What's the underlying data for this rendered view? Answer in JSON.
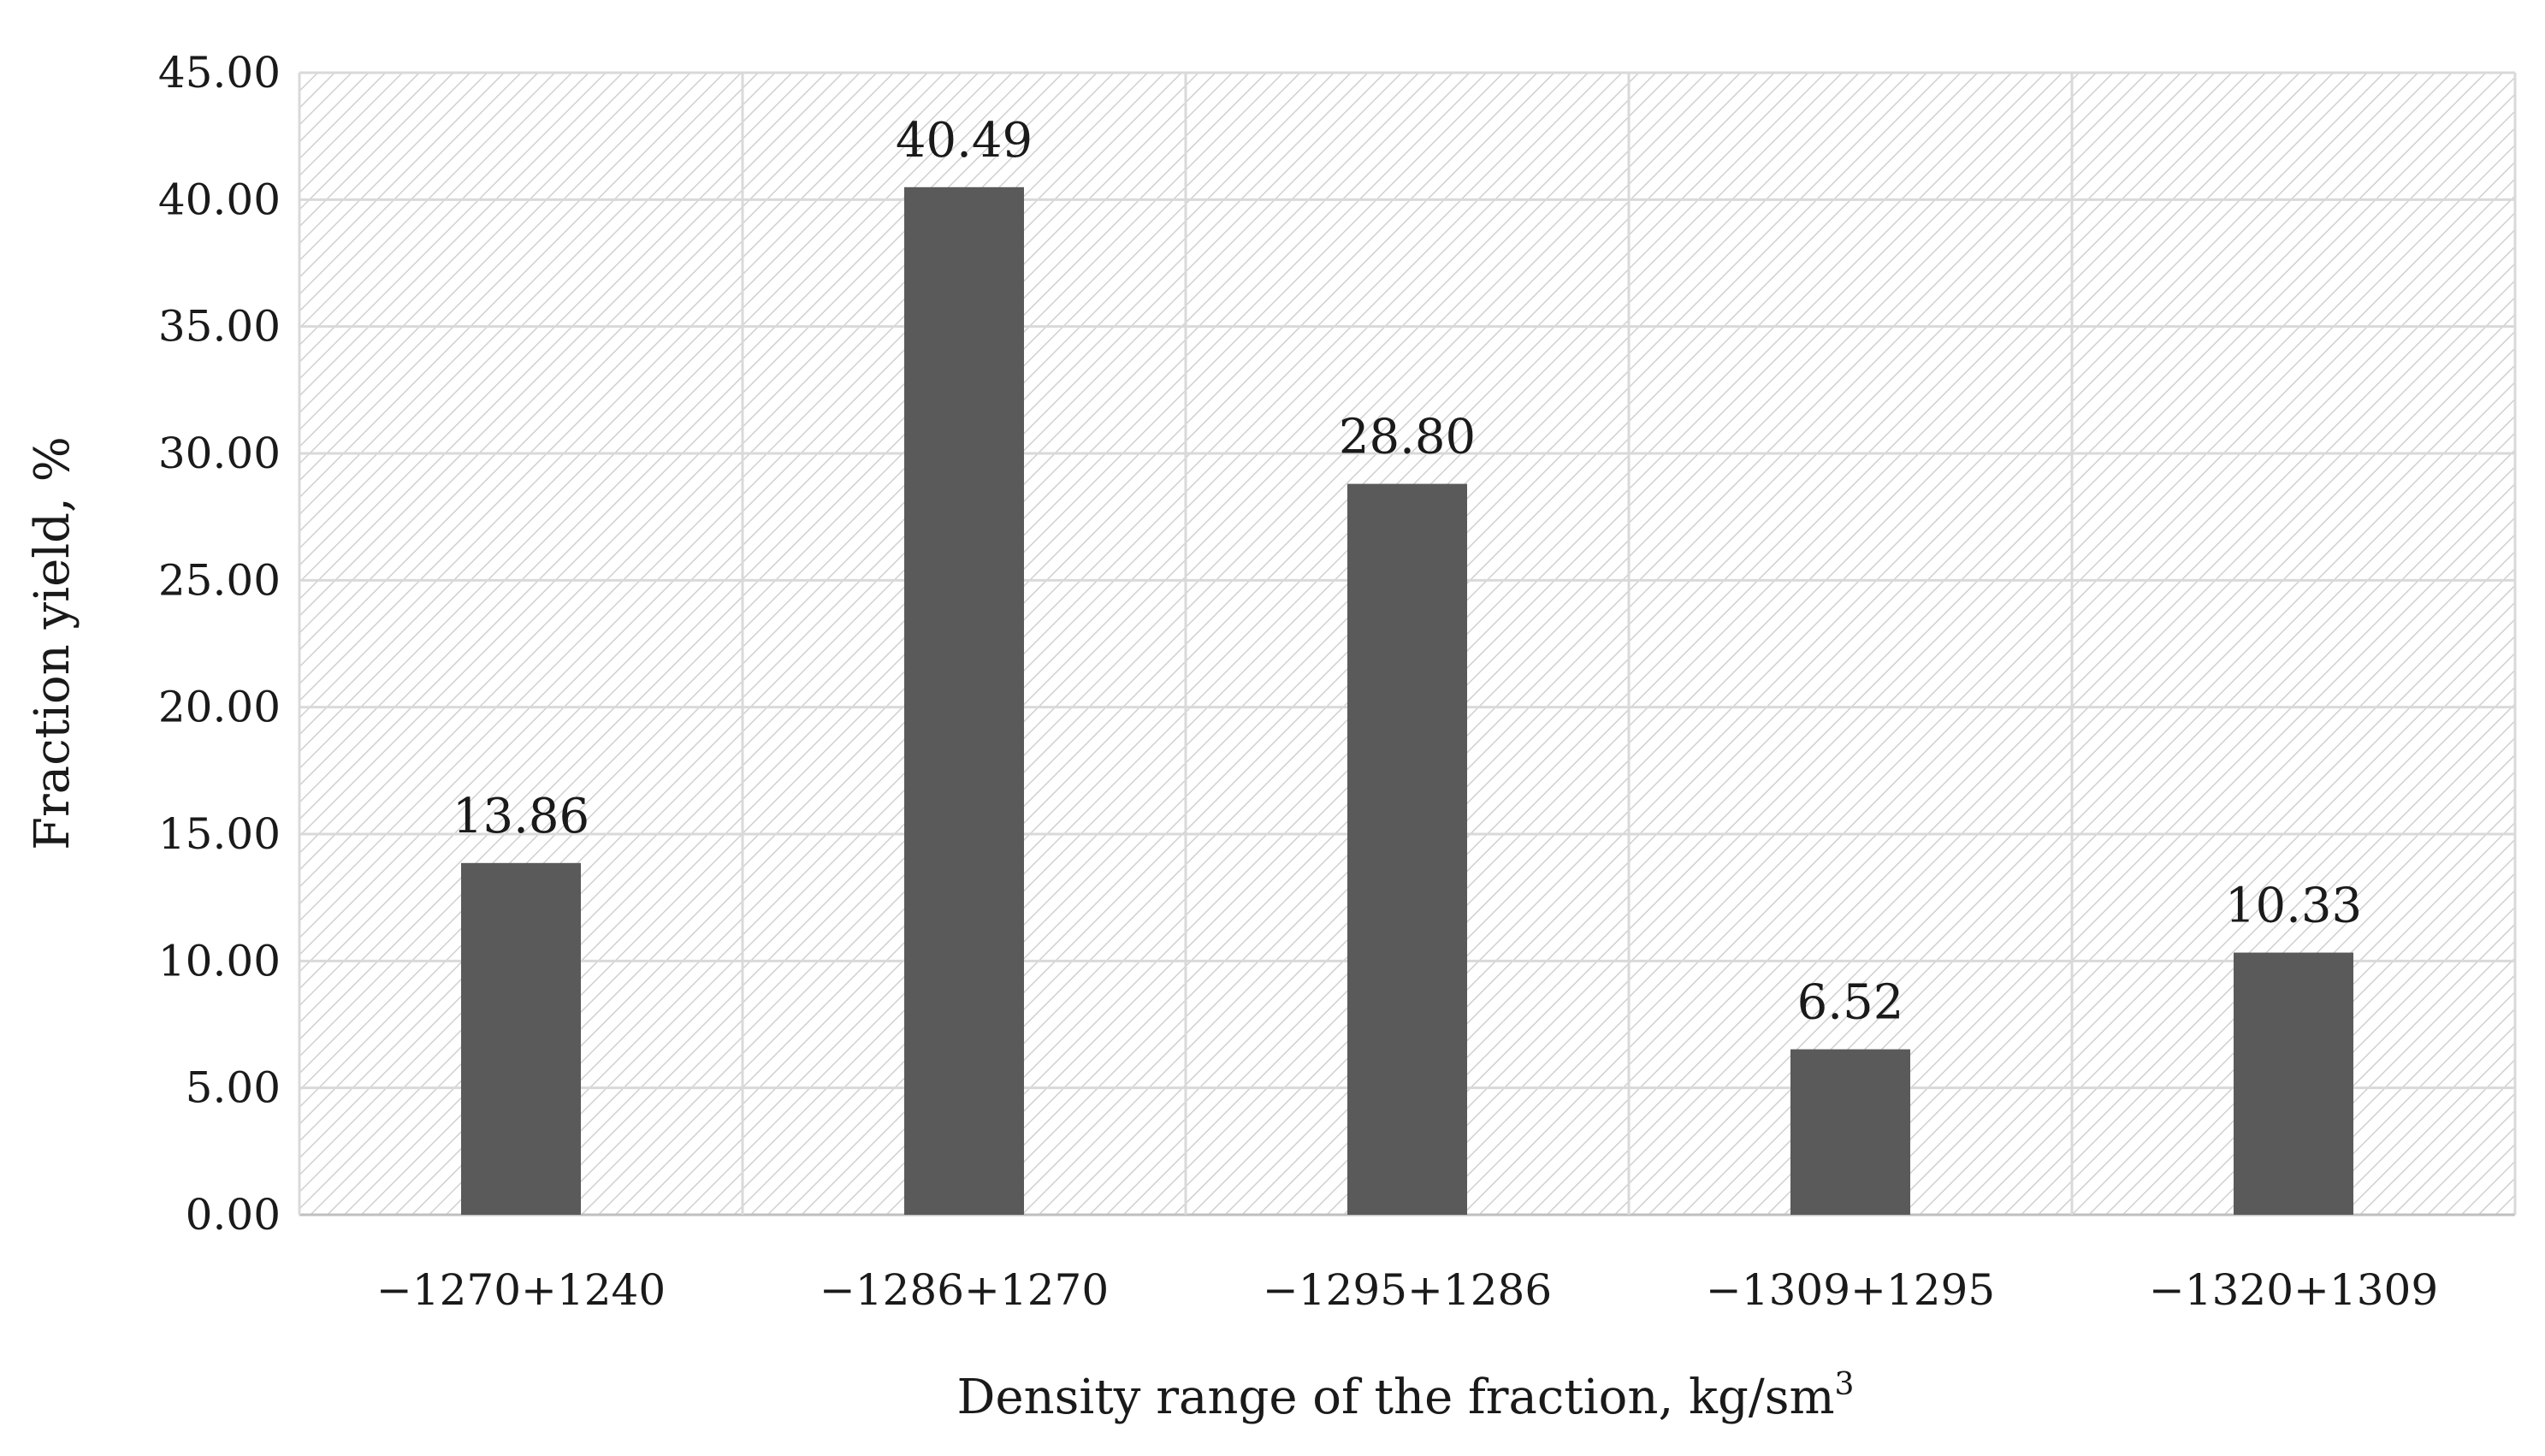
{
  "chart_data": {
    "type": "bar",
    "title": "",
    "xlabel": "Density range of the fraction, kg/sm",
    "xlabel_superscript": "3",
    "ylabel": "Fraction yield, %",
    "categories": [
      "−1270+1240",
      "−1286+1270",
      "−1295+1286",
      "−1309+1295",
      "−1320+1309"
    ],
    "values": [
      13.86,
      40.49,
      28.8,
      6.52,
      10.33
    ],
    "value_labels": [
      "13.86",
      "40.49",
      "28.80",
      "6.52",
      "10.33"
    ],
    "ylim": [
      0,
      45
    ],
    "yticks": [
      "0.00",
      "5.00",
      "10.00",
      "15.00",
      "20.00",
      "25.00",
      "30.00",
      "35.00",
      "40.00",
      "45.00"
    ],
    "grid": true,
    "legend": "none",
    "bar_color": "#5a5a5a",
    "grid_color": "#d9d9d9",
    "hatch_color": "#d0d0d0"
  }
}
